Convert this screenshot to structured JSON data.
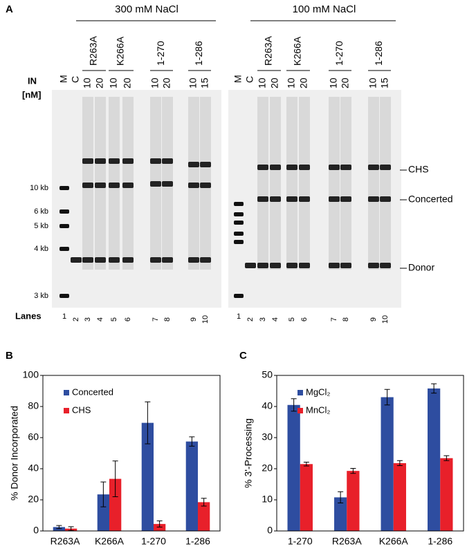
{
  "gel": {
    "panel_label": "A",
    "in_label": [
      "IN",
      "[nM]"
    ],
    "lanes_label": "Lanes",
    "markers": [
      "10 kb",
      "6 kb",
      "5 kb",
      "4 kb",
      "3 kb"
    ],
    "bands": [
      "CHS",
      "Concerted",
      "Donor"
    ],
    "groups": [
      {
        "salt": "300 mM NaCl",
        "lane_headers": [
          "M",
          "C"
        ],
        "mutants": [
          {
            "name": "R263A",
            "conc": [
              10,
              20
            ]
          },
          {
            "name": "K266A",
            "conc": [
              10,
              20
            ]
          },
          {
            "name": "1-270",
            "conc": [
              10,
              20
            ]
          },
          {
            "name": "1-286",
            "conc": [
              10,
              15
            ]
          }
        ],
        "lane_numbers": [
          1,
          2,
          3,
          4,
          5,
          6,
          7,
          8,
          9,
          10
        ]
      },
      {
        "salt": "100 mM NaCl",
        "lane_headers": [
          "M",
          "C"
        ],
        "mutants": [
          {
            "name": "R263A",
            "conc": [
              10,
              20
            ]
          },
          {
            "name": "K266A",
            "conc": [
              10,
              20
            ]
          },
          {
            "name": "1-270",
            "conc": [
              10,
              20
            ]
          },
          {
            "name": "1-286",
            "conc": [
              10,
              15
            ]
          }
        ],
        "lane_numbers": [
          1,
          2,
          3,
          4,
          5,
          6,
          7,
          8,
          9,
          10
        ]
      }
    ]
  },
  "chart_data": [
    {
      "type": "bar",
      "panel_label": "B",
      "ylabel": "% Donor Incorporated",
      "categories": [
        "R263A",
        "K266A",
        "1-270",
        "1-286"
      ],
      "series": [
        {
          "name": "Concerted",
          "color": "#2e4da0",
          "values": [
            2.5,
            23.5,
            69.5,
            57.5
          ],
          "errors": [
            1,
            8,
            13.5,
            3
          ]
        },
        {
          "name": "CHS",
          "color": "#e8202a",
          "values": [
            1.5,
            33.5,
            4.5,
            18.5
          ],
          "errors": [
            1.2,
            11.5,
            2,
            2.5
          ]
        }
      ],
      "ylim": [
        0,
        100
      ],
      "yticks": [
        0,
        20,
        40,
        60,
        80,
        100
      ],
      "legend": "upper left"
    },
    {
      "type": "bar",
      "panel_label": "C",
      "ylabel": "% 3'-Processing",
      "categories": [
        "1-270",
        "R263A",
        "K266A",
        "1-286"
      ],
      "series": [
        {
          "name": "MgCl₂",
          "color": "#2e4da0",
          "values": [
            40.5,
            10.8,
            43,
            45.8
          ],
          "errors": [
            2,
            1.8,
            2.5,
            1.5
          ]
        },
        {
          "name": "MnCl₂",
          "color": "#e8202a",
          "values": [
            21.5,
            19.3,
            21.8,
            23.4
          ],
          "errors": [
            0.6,
            0.8,
            0.8,
            0.8
          ]
        }
      ],
      "ylim": [
        0,
        50
      ],
      "yticks": [
        0,
        10,
        20,
        30,
        40,
        50
      ],
      "legend": "upper left"
    }
  ]
}
